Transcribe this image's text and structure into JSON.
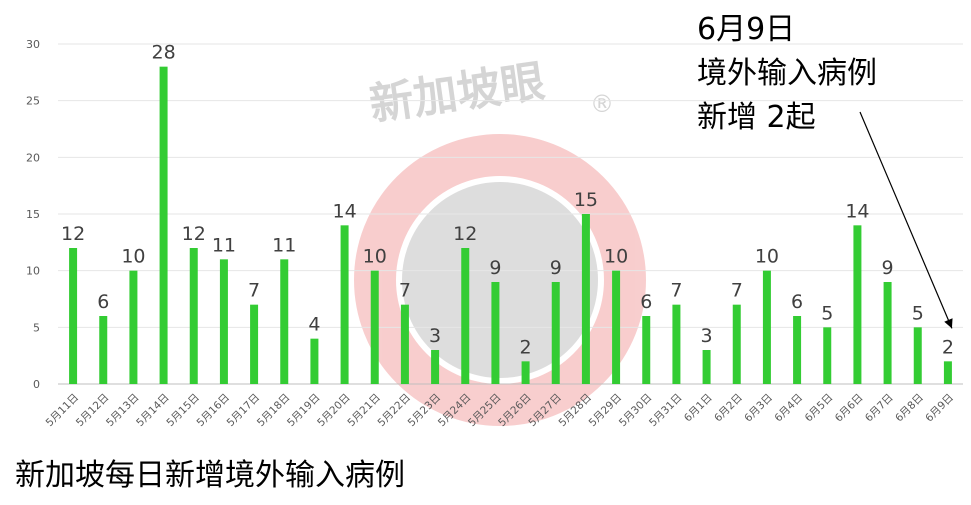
{
  "chart_data": {
    "type": "bar",
    "categories": [
      "5月11日",
      "5月12日",
      "5月13日",
      "5月14日",
      "5月15日",
      "5月16日",
      "5月17日",
      "5月18日",
      "5月19日",
      "5月20日",
      "5月21日",
      "5月22日",
      "5月23日",
      "5月24日",
      "5月25日",
      "5月26日",
      "5月27日",
      "5月28日",
      "5月29日",
      "5月30日",
      "5月31日",
      "6月1日",
      "6月2日",
      "6月3日",
      "6月4日",
      "6月5日",
      "6月6日",
      "6月7日",
      "6月8日",
      "6月9日"
    ],
    "values": [
      12,
      6,
      10,
      28,
      12,
      11,
      7,
      11,
      4,
      14,
      10,
      7,
      3,
      12,
      9,
      2,
      9,
      15,
      10,
      6,
      7,
      3,
      7,
      10,
      6,
      5,
      14,
      9,
      5,
      2
    ],
    "ylim": [
      0,
      30
    ],
    "yticks": [
      0,
      5,
      10,
      15,
      20,
      25,
      30
    ],
    "grid": true,
    "bar_color": "#33cc33",
    "data_labels": true
  },
  "annotation": {
    "lines": [
      "6月9日",
      "境外输入病例",
      "新增 2起"
    ],
    "target_category": "6月9日"
  },
  "caption": "新加坡每日新增境外输入病例",
  "watermark": {
    "text": "新加坡眼",
    "mark": "®"
  }
}
